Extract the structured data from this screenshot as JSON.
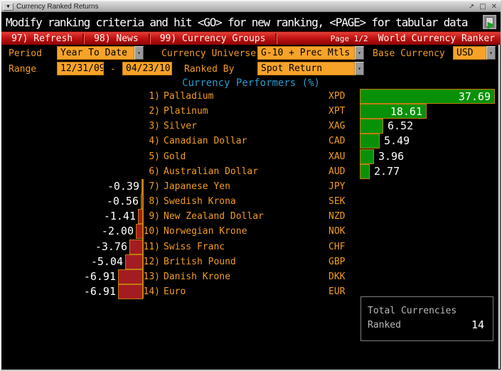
{
  "window": {
    "title": "Currency Ranked Returns",
    "menu_icon": "▼",
    "controls": {
      "restore_icon": "↗",
      "maximize_icon": "□",
      "close_icon": "✕"
    }
  },
  "message_bar": {
    "text": "Modify ranking criteria and hit <GO> for new ranking, <PAGE> for tabular data"
  },
  "menu_bar": {
    "items": [
      {
        "label": "97) Refresh"
      },
      {
        "label": "98) News"
      },
      {
        "label": "99) Currency Groups"
      }
    ],
    "page_label": "Page 1/2",
    "app_title": "World Currency Ranker"
  },
  "criteria": {
    "period_label": "Period",
    "period_value": "Year To Date",
    "universe_label": "Currency Universe",
    "universe_value": "G-10 + Prec Mtls",
    "base_label": "Base Currency",
    "base_value": "USD",
    "range_label": "Range",
    "range_start": "12/31/09",
    "range_separator": "-",
    "range_end": "04/23/10",
    "ranked_by_label": "Ranked By",
    "ranked_by_value": "Spot Return"
  },
  "icons": {
    "dropdown_arrow": "▾"
  },
  "chart_data": {
    "type": "bar",
    "orientation": "horizontal",
    "title": "Currency Performers  (%)",
    "legend": "none",
    "grid": false,
    "positive_color": "#089108",
    "negative_color": "#a31c22",
    "bar_border_color": "#bf7d0c",
    "xlim": [
      -7.5,
      38.5
    ],
    "rows": [
      {
        "rank": "1)",
        "name": "Palladium",
        "ticker": "XPD",
        "value": 37.69,
        "display": "37.69"
      },
      {
        "rank": "2)",
        "name": "Platinum",
        "ticker": "XPT",
        "value": 18.61,
        "display": "18.61"
      },
      {
        "rank": "3)",
        "name": "Silver",
        "ticker": "XAG",
        "value": 6.52,
        "display": "6.52"
      },
      {
        "rank": "4)",
        "name": "Canadian Dollar",
        "ticker": "CAD",
        "value": 5.49,
        "display": "5.49"
      },
      {
        "rank": "5)",
        "name": "Gold",
        "ticker": "XAU",
        "value": 3.96,
        "display": "3.96"
      },
      {
        "rank": "6)",
        "name": "Australian Dollar",
        "ticker": "AUD",
        "value": 2.77,
        "display": "2.77"
      },
      {
        "rank": "7)",
        "name": "Japanese Yen",
        "ticker": "JPY",
        "value": -0.39,
        "display": "-0.39"
      },
      {
        "rank": "8)",
        "name": "Swedish Krona",
        "ticker": "SEK",
        "value": -0.56,
        "display": "-0.56"
      },
      {
        "rank": "9)",
        "name": "New Zealand Dollar",
        "ticker": "NZD",
        "value": -1.41,
        "display": "-1.41"
      },
      {
        "rank": "10)",
        "name": "Norwegian Krone",
        "ticker": "NOK",
        "value": -2.0,
        "display": "-2.00"
      },
      {
        "rank": "11)",
        "name": "Swiss Franc",
        "ticker": "CHF",
        "value": -3.76,
        "display": "-3.76"
      },
      {
        "rank": "12)",
        "name": "British Pound",
        "ticker": "GBP",
        "value": -5.04,
        "display": "-5.04"
      },
      {
        "rank": "13)",
        "name": "Danish Krone",
        "ticker": "DKK",
        "value": -6.91,
        "display": "-6.91"
      },
      {
        "rank": "14)",
        "name": "Euro",
        "ticker": "EUR",
        "value": -6.91,
        "display": "-6.91"
      }
    ]
  },
  "summary": {
    "line1": "Total Currencies",
    "line2": "Ranked",
    "value": "14"
  }
}
